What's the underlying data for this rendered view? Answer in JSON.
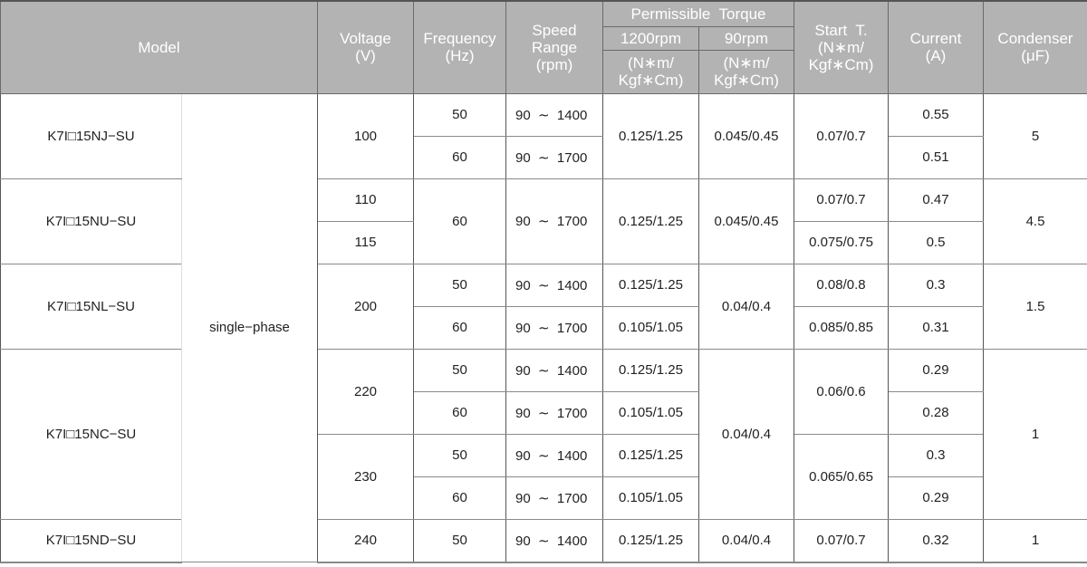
{
  "header": {
    "model": "Model",
    "voltage": "Voltage\n(V)",
    "frequency": "Frequency\n(Hz)",
    "speed_range": "Speed\nRange\n(rpm)",
    "permissible_torque": "Permissible  Torque",
    "rpm1200": "1200rpm",
    "rpm90": "90rpm",
    "unit1200": "(N∗m/\nKgf∗Cm)",
    "unit90": "(N∗m/\nKgf∗Cm)",
    "start_torque": "Start  T.\n(N∗m/\nKgf∗Cm)",
    "current": "Current\n(A)",
    "condenser": "Condenser\n(μF)"
  },
  "rows": [
    [
      {
        "col": "model",
        "text": "K7I□15NJ−SU",
        "rowspan": 2
      },
      {
        "col": "phase",
        "text": "single−phase",
        "rowspan": 11
      },
      {
        "col": "voltage",
        "text": "100",
        "rowspan": 2
      },
      {
        "col": "frequency",
        "text": "50"
      },
      {
        "col": "speed",
        "text": "90  ∼  1400"
      },
      {
        "col": "torque-1200",
        "text": "0.125/1.25",
        "rowspan": 2
      },
      {
        "col": "torque-90",
        "text": "0.045/0.45",
        "rowspan": 2
      },
      {
        "col": "start-torque",
        "text": "0.07/0.7",
        "rowspan": 2
      },
      {
        "col": "current",
        "text": "0.55"
      },
      {
        "col": "condenser",
        "text": "5",
        "rowspan": 2
      }
    ],
    [
      {
        "col": "frequency",
        "text": "60"
      },
      {
        "col": "speed",
        "text": "90  ∼  1700"
      },
      {
        "col": "current",
        "text": "0.51"
      }
    ],
    [
      {
        "col": "model",
        "text": "K7I□15NU−SU",
        "rowspan": 2
      },
      {
        "col": "voltage",
        "text": "110"
      },
      {
        "col": "frequency",
        "text": "60",
        "rowspan": 2
      },
      {
        "col": "speed",
        "text": "90  ∼  1700",
        "rowspan": 2
      },
      {
        "col": "torque-1200",
        "text": "0.125/1.25",
        "rowspan": 2
      },
      {
        "col": "torque-90",
        "text": "0.045/0.45",
        "rowspan": 2
      },
      {
        "col": "start-torque",
        "text": "0.07/0.7"
      },
      {
        "col": "current",
        "text": "0.47"
      },
      {
        "col": "condenser",
        "text": "4.5",
        "rowspan": 2
      }
    ],
    [
      {
        "col": "voltage",
        "text": "115"
      },
      {
        "col": "start-torque",
        "text": "0.075/0.75"
      },
      {
        "col": "current",
        "text": "0.5"
      }
    ],
    [
      {
        "col": "model",
        "text": "K7I□15NL−SU",
        "rowspan": 2
      },
      {
        "col": "voltage",
        "text": "200",
        "rowspan": 2
      },
      {
        "col": "frequency",
        "text": "50"
      },
      {
        "col": "speed",
        "text": "90  ∼  1400"
      },
      {
        "col": "torque-1200",
        "text": "0.125/1.25"
      },
      {
        "col": "torque-90",
        "text": "0.04/0.4",
        "rowspan": 2
      },
      {
        "col": "start-torque",
        "text": "0.08/0.8"
      },
      {
        "col": "current",
        "text": "0.3"
      },
      {
        "col": "condenser",
        "text": "1.5",
        "rowspan": 2
      }
    ],
    [
      {
        "col": "frequency",
        "text": "60"
      },
      {
        "col": "speed",
        "text": "90  ∼  1700"
      },
      {
        "col": "torque-1200",
        "text": "0.105/1.05"
      },
      {
        "col": "start-torque",
        "text": "0.085/0.85"
      },
      {
        "col": "current",
        "text": "0.31"
      }
    ],
    [
      {
        "col": "model",
        "text": "K7I□15NC−SU",
        "rowspan": 4
      },
      {
        "col": "voltage",
        "text": "220",
        "rowspan": 2
      },
      {
        "col": "frequency",
        "text": "50"
      },
      {
        "col": "speed",
        "text": "90  ∼  1400"
      },
      {
        "col": "torque-1200",
        "text": "0.125/1.25"
      },
      {
        "col": "torque-90",
        "text": "0.04/0.4",
        "rowspan": 4
      },
      {
        "col": "start-torque",
        "text": "0.06/0.6",
        "rowspan": 2
      },
      {
        "col": "current",
        "text": "0.29"
      },
      {
        "col": "condenser",
        "text": "1",
        "rowspan": 4
      }
    ],
    [
      {
        "col": "frequency",
        "text": "60"
      },
      {
        "col": "speed",
        "text": "90  ∼  1700"
      },
      {
        "col": "torque-1200",
        "text": "0.105/1.05"
      },
      {
        "col": "current",
        "text": "0.28"
      }
    ],
    [
      {
        "col": "voltage",
        "text": "230",
        "rowspan": 2
      },
      {
        "col": "frequency",
        "text": "50"
      },
      {
        "col": "speed",
        "text": "90  ∼  1400"
      },
      {
        "col": "torque-1200",
        "text": "0.125/1.25"
      },
      {
        "col": "start-torque",
        "text": "0.065/0.65",
        "rowspan": 2
      },
      {
        "col": "current",
        "text": "0.3"
      }
    ],
    [
      {
        "col": "frequency",
        "text": "60"
      },
      {
        "col": "speed",
        "text": "90  ∼  1700"
      },
      {
        "col": "torque-1200",
        "text": "0.105/1.05"
      },
      {
        "col": "current",
        "text": "0.29"
      }
    ],
    [
      {
        "col": "model",
        "text": "K7I□15ND−SU"
      },
      {
        "col": "voltage",
        "text": "240"
      },
      {
        "col": "frequency",
        "text": "50"
      },
      {
        "col": "speed",
        "text": "90  ∼  1400"
      },
      {
        "col": "torque-1200",
        "text": "0.125/1.25"
      },
      {
        "col": "torque-90",
        "text": "0.04/0.4"
      },
      {
        "col": "start-torque",
        "text": "0.07/0.7"
      },
      {
        "col": "current",
        "text": "0.32"
      },
      {
        "col": "condenser",
        "text": "1"
      }
    ]
  ]
}
